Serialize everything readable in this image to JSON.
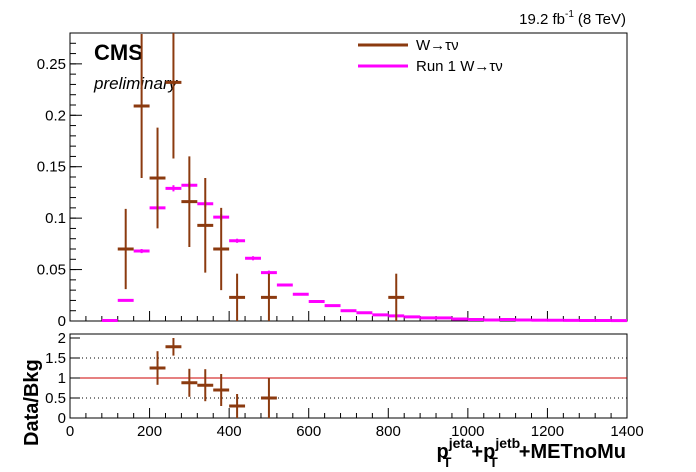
{
  "chart_data": [
    {
      "type": "scatter",
      "panel": "main",
      "title": "",
      "ylabel": "",
      "xlim": [
        0,
        1400
      ],
      "ylim": [
        0,
        0.28
      ],
      "y_tick_labels": [
        "0",
        "0.05",
        "0.1",
        "0.15",
        "0.2",
        "0.25"
      ],
      "y_ticks": [
        0,
        0.05,
        0.1,
        0.15,
        0.2,
        0.25
      ],
      "annotations": {
        "experiment": "CMS",
        "status": "preliminary",
        "lumi_value": "19.2 fb",
        "lumi_exp": "-1",
        "lumi_energy": "(8 TeV)"
      },
      "legend": {
        "placement": "top-right",
        "entries": [
          {
            "label": "W→τν",
            "color": "#8B3A0F"
          },
          {
            "label": "Run 1 W→τν",
            "color": "#FF00FF"
          }
        ]
      },
      "series": [
        {
          "name": "W→τν",
          "color": "#8B3A0F",
          "points": [
            {
              "x": 140,
              "y": 0.07,
              "xerr": 20,
              "yerr": 0.039
            },
            {
              "x": 180,
              "y": 0.209,
              "xerr": 20,
              "yerr": 0.07
            },
            {
              "x": 220,
              "y": 0.139,
              "xerr": 20,
              "yerr": 0.049
            },
            {
              "x": 260,
              "y": 0.232,
              "xerr": 20,
              "yerr": 0.074
            },
            {
              "x": 300,
              "y": 0.116,
              "xerr": 20,
              "yerr": 0.044
            },
            {
              "x": 340,
              "y": 0.093,
              "xerr": 20,
              "yerr": 0.046
            },
            {
              "x": 380,
              "y": 0.07,
              "xerr": 20,
              "yerr": 0.04
            },
            {
              "x": 420,
              "y": 0.023,
              "xerr": 20,
              "yerr": 0.023
            },
            {
              "x": 500,
              "y": 0.023,
              "xerr": 20,
              "yerr": 0.023
            },
            {
              "x": 820,
              "y": 0.023,
              "xerr": 20,
              "yerr": 0.023
            }
          ]
        },
        {
          "name": "Run 1 W→τν",
          "color": "#FF00FF",
          "points": [
            {
              "x": 100,
              "y": 0.0005,
              "xerr": 20,
              "yerr": 0.0
            },
            {
              "x": 140,
              "y": 0.02,
              "xerr": 20,
              "yerr": 0.001
            },
            {
              "x": 180,
              "y": 0.068,
              "xerr": 20,
              "yerr": 0.002
            },
            {
              "x": 220,
              "y": 0.11,
              "xerr": 20,
              "yerr": 0.003
            },
            {
              "x": 260,
              "y": 0.129,
              "xerr": 20,
              "yerr": 0.003
            },
            {
              "x": 300,
              "y": 0.132,
              "xerr": 20,
              "yerr": 0.003
            },
            {
              "x": 340,
              "y": 0.114,
              "xerr": 20,
              "yerr": 0.003
            },
            {
              "x": 380,
              "y": 0.101,
              "xerr": 20,
              "yerr": 0.003
            },
            {
              "x": 420,
              "y": 0.078,
              "xerr": 20,
              "yerr": 0.002
            },
            {
              "x": 460,
              "y": 0.061,
              "xerr": 20,
              "yerr": 0.002
            },
            {
              "x": 500,
              "y": 0.047,
              "xerr": 20,
              "yerr": 0.002
            },
            {
              "x": 540,
              "y": 0.035,
              "xerr": 20,
              "yerr": 0.001
            },
            {
              "x": 580,
              "y": 0.026,
              "xerr": 20,
              "yerr": 0.001
            },
            {
              "x": 620,
              "y": 0.019,
              "xerr": 20,
              "yerr": 0.001
            },
            {
              "x": 660,
              "y": 0.015,
              "xerr": 20,
              "yerr": 0.001
            },
            {
              "x": 700,
              "y": 0.01,
              "xerr": 20,
              "yerr": 0.001
            },
            {
              "x": 740,
              "y": 0.008,
              "xerr": 20,
              "yerr": 0.001
            },
            {
              "x": 780,
              "y": 0.006,
              "xerr": 20,
              "yerr": 0.001
            },
            {
              "x": 820,
              "y": 0.005,
              "xerr": 20,
              "yerr": 0.001
            },
            {
              "x": 860,
              "y": 0.004,
              "xerr": 20,
              "yerr": 0.001
            },
            {
              "x": 900,
              "y": 0.003,
              "xerr": 20,
              "yerr": 0.001
            },
            {
              "x": 940,
              "y": 0.003,
              "xerr": 20,
              "yerr": 0.001
            },
            {
              "x": 980,
              "y": 0.002,
              "xerr": 20,
              "yerr": 0.0005
            },
            {
              "x": 1020,
              "y": 0.0015,
              "xerr": 20,
              "yerr": 0.0005
            },
            {
              "x": 1060,
              "y": 0.001,
              "xerr": 20,
              "yerr": 0.0005
            },
            {
              "x": 1100,
              "y": 0.0015,
              "xerr": 20,
              "yerr": 0.0005
            },
            {
              "x": 1140,
              "y": 0.001,
              "xerr": 20,
              "yerr": 0.0005
            },
            {
              "x": 1180,
              "y": 0.0008,
              "xerr": 20,
              "yerr": 0.0003
            },
            {
              "x": 1220,
              "y": 0.0007,
              "xerr": 20,
              "yerr": 0.0003
            },
            {
              "x": 1260,
              "y": 0.0006,
              "xerr": 20,
              "yerr": 0.0003
            },
            {
              "x": 1300,
              "y": 0.0005,
              "xerr": 20,
              "yerr": 0.0003
            },
            {
              "x": 1340,
              "y": 0.0005,
              "xerr": 20,
              "yerr": 0.0003
            },
            {
              "x": 1380,
              "y": 0.0004,
              "xerr": 20,
              "yerr": 0.0003
            }
          ]
        }
      ]
    },
    {
      "type": "scatter",
      "panel": "ratio",
      "ylabel": "Data/Bkg",
      "xlim": [
        0,
        1400
      ],
      "ylim": [
        0,
        2.1
      ],
      "x_tick_labels": [
        "0",
        "200",
        "400",
        "600",
        "800",
        "1000",
        "1200",
        "1400"
      ],
      "x_ticks": [
        0,
        200,
        400,
        600,
        800,
        1000,
        1200,
        1400
      ],
      "y_tick_labels": [
        "0",
        "0.5",
        "1",
        "1.5",
        "2"
      ],
      "y_ticks": [
        0,
        0.5,
        1,
        1.5,
        2
      ],
      "reference_line": {
        "y": 1,
        "color": "#CC0000"
      },
      "dotted_lines": [
        0.5,
        1.5
      ],
      "xlabel_parts": {
        "p1": "p",
        "sup1": "jeta",
        "sub1": "T",
        "plus1": "+",
        "p2": "p",
        "sup2": "jetb",
        "sub2": "T",
        "rest": "+METnoMu"
      },
      "series": [
        {
          "name": "",
          "color": "#8B3A0F",
          "points": [
            {
              "x": 220,
              "y": 1.25,
              "xerr": 20,
              "yerr": 0.42
            },
            {
              "x": 260,
              "y": 1.78,
              "xerr": 20,
              "yerr": 0.22
            },
            {
              "x": 300,
              "y": 0.88,
              "xerr": 20,
              "yerr": 0.35
            },
            {
              "x": 340,
              "y": 0.82,
              "xerr": 20,
              "yerr": 0.4
            },
            {
              "x": 380,
              "y": 0.7,
              "xerr": 20,
              "yerr": 0.4
            },
            {
              "x": 420,
              "y": 0.3,
              "xerr": 20,
              "yerr": 0.3
            },
            {
              "x": 500,
              "y": 0.5,
              "xerr": 20,
              "yerr": 0.5
            }
          ]
        }
      ]
    }
  ]
}
